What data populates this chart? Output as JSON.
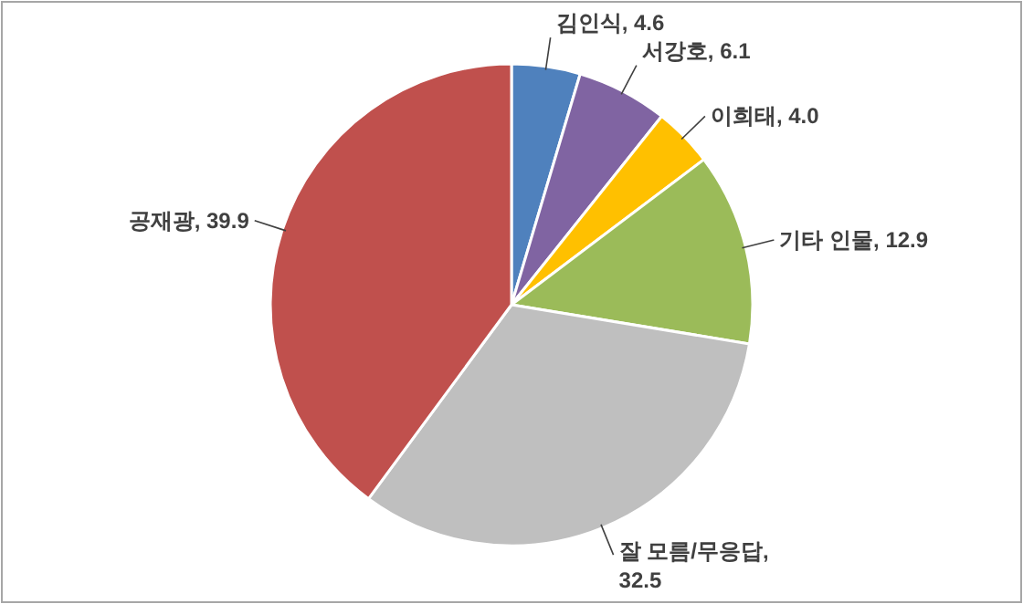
{
  "chart_data": {
    "type": "pie",
    "categories": [
      "김인식",
      "서강호",
      "이희태",
      "기타 인물",
      "잘 모름/무응답",
      "공재광"
    ],
    "values": [
      4.6,
      6.1,
      4.0,
      12.9,
      32.5,
      39.9
    ],
    "colors": [
      "#4f81bd",
      "#8064a2",
      "#ffc000",
      "#9bbb59",
      "#bfbfbf",
      "#c0504d"
    ],
    "value_labels": [
      ", 4.6",
      ", 6.1",
      ", 4.0",
      ", 12.9",
      ", 32.5",
      ", 39.9"
    ]
  }
}
